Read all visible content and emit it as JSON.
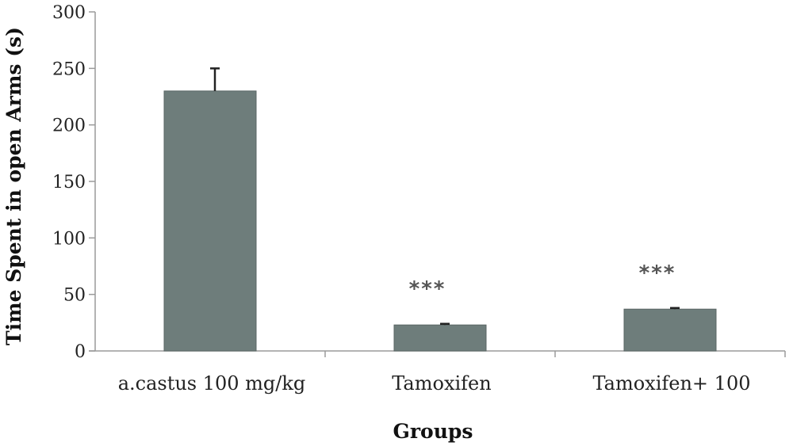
{
  "chart_data": {
    "type": "bar",
    "categories": [
      "a.castus 100 mg/kg",
      "Tamoxifen",
      "Tamoxifen+ 100"
    ],
    "values": [
      230,
      23,
      37
    ],
    "error_upper": [
      20,
      1,
      1
    ],
    "annotations": [
      "",
      "***",
      "***"
    ],
    "xlabel": "Groups",
    "ylabel": "Time Spent in open Arms (s)",
    "ylim": [
      0,
      300
    ],
    "yticks": [
      0,
      50,
      100,
      150,
      200,
      250,
      300
    ],
    "grid": false,
    "bar_color": "#6e7d7b",
    "error_bar_color": "#222222"
  }
}
